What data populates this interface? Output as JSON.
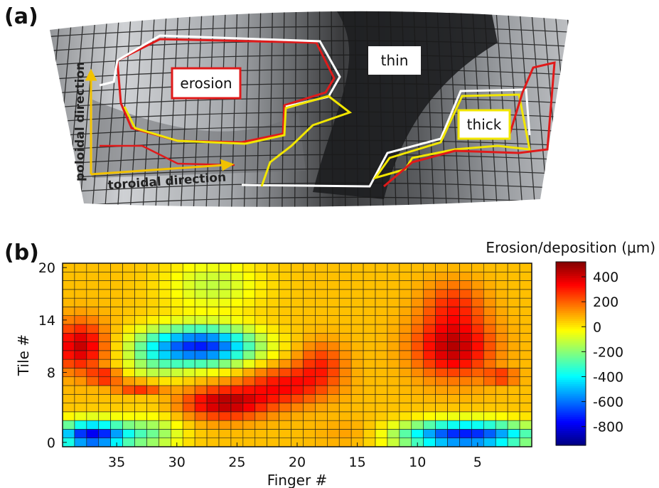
{
  "figure": {
    "panel_a_label": "(a)",
    "panel_b_label": "(b)"
  },
  "photo": {
    "labels": {
      "erosion": "erosion",
      "thin": "thin",
      "thick": "thick",
      "poloidal": "poloidal direction",
      "toroidal": "toroidal direction"
    },
    "colors": {
      "erosion_outline": "#e01a1a",
      "deposit_outline": "#f2e600",
      "thin_outline": "#ffffff",
      "arrow": "#f2c200"
    }
  },
  "chart_data": {
    "type": "heatmap",
    "title": "",
    "xlabel": "Finger #",
    "ylabel": "Tile #",
    "x_ticks": [
      35,
      30,
      25,
      20,
      15,
      10,
      5
    ],
    "y_ticks": [
      0,
      8,
      14,
      20
    ],
    "x_range": [
      39,
      1
    ],
    "y_range": [
      0,
      20
    ],
    "colorbar": {
      "label": "Erosion/deposition (μm)",
      "ticks": [
        400,
        200,
        0,
        -200,
        -400,
        -600,
        -800
      ],
      "range": [
        -950,
        520
      ],
      "colormap": "jet"
    },
    "features": [
      {
        "name": "deep erosion zone",
        "finger_range": [
          32,
          24
        ],
        "tile_range": [
          9,
          13
        ],
        "value_um": -700
      },
      {
        "name": "lower deposition band",
        "finger_range": [
          32,
          17
        ],
        "tile_range": [
          3,
          7
        ],
        "value_um": 400
      },
      {
        "name": "left deposition",
        "finger_range": [
          39,
          36
        ],
        "tile_range": [
          9,
          13
        ],
        "value_um": 380
      },
      {
        "name": "right deposition",
        "finger_range": [
          10,
          4
        ],
        "tile_range": [
          9,
          14
        ],
        "value_um": 420
      },
      {
        "name": "bottom erosion",
        "finger_range": [
          39,
          34
        ],
        "tile_range": [
          0,
          2
        ],
        "value_um": -800
      },
      {
        "name": "bottom erosion right",
        "finger_range": [
          11,
          1
        ],
        "tile_range": [
          0,
          2
        ],
        "value_um": -780
      }
    ]
  }
}
